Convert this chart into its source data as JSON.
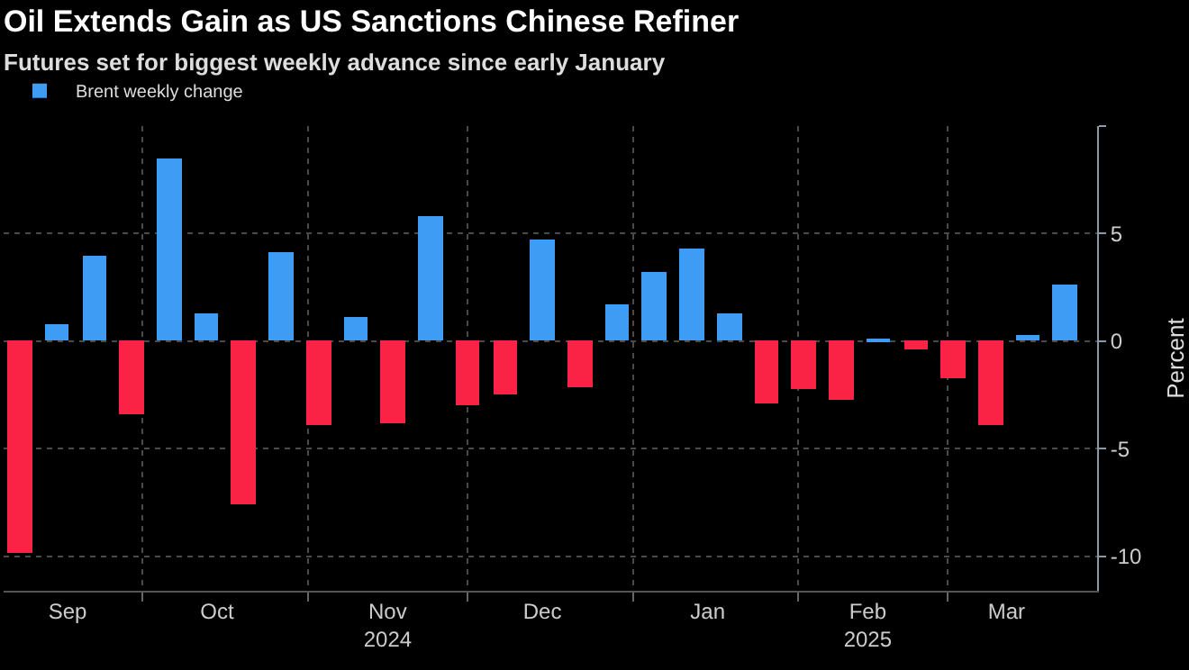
{
  "chart_data": {
    "type": "bar",
    "title": "Oil Extends Gain as US Sanctions Chinese Refiner",
    "subtitle": "Futures set for biggest weekly advance since early January",
    "ylabel": "Percent",
    "x": [
      "2024-09-08",
      "2024-09-15",
      "2024-09-22",
      "2024-09-29",
      "2024-10-06",
      "2024-10-13",
      "2024-10-20",
      "2024-10-27",
      "2024-11-03",
      "2024-11-10",
      "2024-11-17",
      "2024-11-24",
      "2024-12-01",
      "2024-12-08",
      "2024-12-15",
      "2024-12-22",
      "2024-12-29",
      "2025-01-05",
      "2025-01-12",
      "2025-01-19",
      "2025-01-26",
      "2025-02-02",
      "2025-02-09",
      "2025-02-16",
      "2025-02-23",
      "2025-03-02",
      "2025-03-09",
      "2025-03-16",
      "2025-03-23"
    ],
    "series": [
      {
        "name": "Brent weekly change",
        "color": "#3e9cf4",
        "values": [
          -9.8,
          0.8,
          4.0,
          -3.4,
          8.5,
          1.3,
          -7.6,
          4.1,
          -3.9,
          1.1,
          -3.8,
          5.8,
          -3.0,
          -2.5,
          4.7,
          -2.1,
          1.7,
          3.2,
          4.3,
          1.3,
          -2.9,
          -2.2,
          -2.7,
          0.1,
          -0.4,
          -1.7,
          -3.9,
          0.3,
          2.6
        ],
        "colors": [
          "#fa2346",
          "#3e9cf4",
          "#3e9cf4",
          "#fa2346",
          "#3e9cf4",
          "#3e9cf4",
          "#fa2346",
          "#3e9cf4",
          "#fa2346",
          "#3e9cf4",
          "#fa2346",
          "#3e9cf4",
          "#fa2346",
          "#fa2346",
          "#3e9cf4",
          "#fa2346",
          "#3e9cf4",
          "#3e9cf4",
          "#3e9cf4",
          "#3e9cf4",
          "#fa2346",
          "#fa2346",
          "#fa2346",
          "#3e9cf4",
          "#fa2346",
          "#fa2346",
          "#fa2346",
          "#3e9cf4",
          "#3e9cf4"
        ]
      }
    ],
    "xlim": [
      "2024-09-05",
      "2025-03-29"
    ],
    "xticks": [
      {
        "value": "2024-09-17",
        "label": "Sep"
      },
      {
        "value": "2024-10-15",
        "label": "Oct"
      },
      {
        "value": "2024-11-16",
        "label": "Nov\n2024"
      },
      {
        "value": "2024-12-15",
        "label": "Dec"
      },
      {
        "value": "2025-01-15",
        "label": "Jan"
      },
      {
        "value": "2025-02-14",
        "label": "Feb\n2025"
      },
      {
        "value": "2025-03-12",
        "label": "Mar"
      },
      {
        "value": "2024-10-01",
        "label": null
      },
      {
        "value": "2024-11-01",
        "label": null
      },
      {
        "value": "2024-12-01",
        "label": null
      },
      {
        "value": "2025-01-01",
        "label": null
      },
      {
        "value": "2025-02-01",
        "label": null
      },
      {
        "value": "2025-03-01",
        "label": null
      }
    ],
    "ylim": [
      -11.6,
      10
    ],
    "yticks": [
      {
        "value": 10,
        "label": null
      },
      5,
      0,
      -5,
      -10
    ],
    "grid": true,
    "legend": "top left"
  }
}
